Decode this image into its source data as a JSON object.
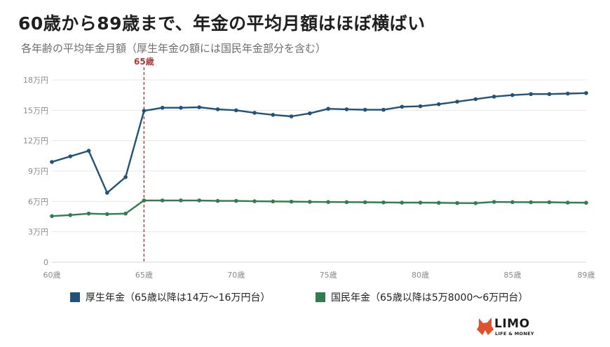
{
  "header": {
    "title": "60歳から89歳まで、年金の平均月額はほぼ横ばい",
    "subtitle": "各年齢の平均年金月額（厚生年金の額には国民年金部分を含む）"
  },
  "chart_data": {
    "type": "line",
    "x": [
      60,
      61,
      62,
      63,
      64,
      65,
      66,
      67,
      68,
      69,
      70,
      71,
      72,
      73,
      74,
      75,
      76,
      77,
      78,
      79,
      80,
      81,
      82,
      83,
      84,
      85,
      86,
      87,
      88,
      89
    ],
    "xlim": [
      60,
      89
    ],
    "ylim": [
      0,
      180000
    ],
    "y_ticks": [
      0,
      30000,
      60000,
      90000,
      120000,
      150000,
      180000
    ],
    "y_tick_labels": [
      "0",
      "3万円",
      "6万円",
      "9万円",
      "12万円",
      "15万円",
      "18万円"
    ],
    "x_ticks": [
      60,
      65,
      70,
      75,
      80,
      85,
      89
    ],
    "x_tick_labels": [
      "60歳",
      "65歳",
      "70歳",
      "75歳",
      "80歳",
      "85歳",
      "89歳"
    ],
    "grid": true,
    "legend_position": "bottom",
    "annotation": {
      "x": 65,
      "label": "65歳",
      "color": "#a93a34"
    },
    "series": [
      {
        "name": "厚生年金（65歳以降は14万〜16万円台）",
        "color": "#21527a",
        "values": [
          99000,
          104500,
          110000,
          68500,
          84000,
          149500,
          152500,
          152500,
          153000,
          151000,
          150000,
          147500,
          145500,
          144000,
          147000,
          151500,
          151000,
          150500,
          150500,
          153500,
          154000,
          156000,
          158500,
          161000,
          163500,
          165000,
          166000,
          166000,
          166500,
          167000
        ]
      },
      {
        "name": "国民年金（65歳以降は5万8000〜6万円台）",
        "color": "#327d4f",
        "values": [
          45500,
          46500,
          48000,
          47500,
          48000,
          61000,
          61000,
          61000,
          61000,
          60500,
          60500,
          60200,
          60000,
          59800,
          59600,
          59400,
          59300,
          59200,
          59000,
          58800,
          58800,
          58600,
          58400,
          58300,
          59500,
          59300,
          59200,
          59200,
          58800,
          58700
        ]
      }
    ]
  },
  "logo": {
    "name": "LIMO",
    "tagline": "LIFE & MONEY"
  }
}
